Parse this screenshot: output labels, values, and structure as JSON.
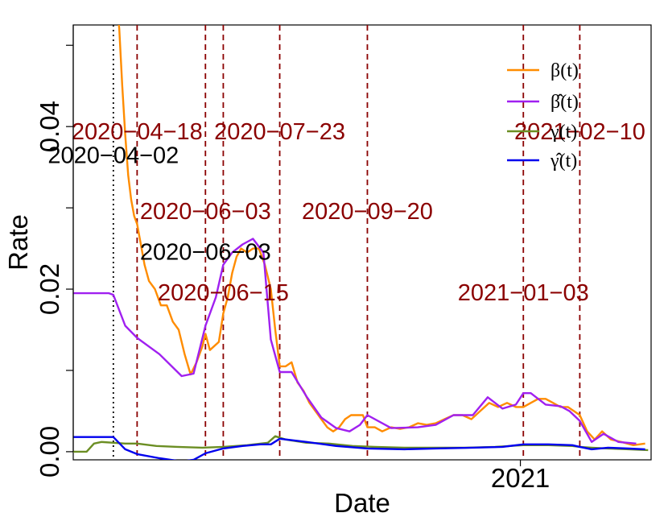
{
  "chart_data": {
    "type": "line",
    "title": "",
    "xlabel": "Date",
    "ylabel": "Rate",
    "x_range": [
      "2020-03-06",
      "2021-03-30"
    ],
    "ylim": [
      -0.001,
      0.0525
    ],
    "y_ticks": [
      0.0,
      0.02,
      0.04
    ],
    "y_tick_labels": [
      "0.00",
      "0.02",
      "0.04"
    ],
    "x_ticks": [
      {
        "date": "2021-01-01",
        "label": "2021"
      }
    ],
    "grid": false,
    "legend_position": "top-right",
    "series": [
      {
        "name": "β(t)",
        "color": "#FF8C00",
        "x": [
          "2020-04-02",
          "2020-04-06",
          "2020-04-08",
          "2020-04-10",
          "2020-04-12",
          "2020-04-14",
          "2020-04-16",
          "2020-04-18",
          "2020-04-20",
          "2020-04-23",
          "2020-04-26",
          "2020-04-30",
          "2020-05-04",
          "2020-05-08",
          "2020-05-12",
          "2020-05-16",
          "2020-05-20",
          "2020-05-24",
          "2020-05-28",
          "2020-06-01",
          "2020-06-03",
          "2020-06-06",
          "2020-06-09",
          "2020-06-12",
          "2020-06-15",
          "2020-06-18",
          "2020-06-21",
          "2020-06-24",
          "2020-06-27",
          "2020-07-01",
          "2020-07-05",
          "2020-07-09",
          "2020-07-13",
          "2020-07-17",
          "2020-07-20",
          "2020-07-23",
          "2020-07-27",
          "2020-07-31",
          "2020-08-04",
          "2020-08-08",
          "2020-08-12",
          "2020-08-16",
          "2020-08-20",
          "2020-08-24",
          "2020-08-28",
          "2020-09-01",
          "2020-09-05",
          "2020-09-09",
          "2020-09-13",
          "2020-09-17",
          "2020-09-20",
          "2020-09-25",
          "2020-09-30",
          "2020-10-06",
          "2020-10-12",
          "2020-10-18",
          "2020-10-24",
          "2020-10-30",
          "2020-11-05",
          "2020-11-11",
          "2020-11-17",
          "2020-11-23",
          "2020-11-29",
          "2020-12-05",
          "2020-12-11",
          "2020-12-17",
          "2020-12-23",
          "2020-12-29",
          "2021-01-03",
          "2021-01-08",
          "2021-01-13",
          "2021-01-18",
          "2021-01-23",
          "2021-01-28",
          "2021-02-02",
          "2021-02-06",
          "2021-02-10",
          "2021-02-15",
          "2021-02-20",
          "2021-02-25",
          "2021-03-03",
          "2021-03-10",
          "2021-03-18",
          "2021-03-26"
        ],
        "y": [
          0.06,
          0.052,
          0.045,
          0.039,
          0.034,
          0.031,
          0.029,
          0.028,
          0.026,
          0.023,
          0.021,
          0.02,
          0.018,
          0.018,
          0.016,
          0.015,
          0.012,
          0.0095,
          0.011,
          0.013,
          0.0145,
          0.0125,
          0.013,
          0.0135,
          0.017,
          0.019,
          0.022,
          0.024,
          0.025,
          0.0245,
          0.025,
          0.025,
          0.023,
          0.02,
          0.015,
          0.0105,
          0.0105,
          0.011,
          0.0085,
          0.0075,
          0.006,
          0.005,
          0.004,
          0.003,
          0.0025,
          0.003,
          0.004,
          0.0045,
          0.0045,
          0.0045,
          0.003,
          0.003,
          0.0025,
          0.003,
          0.0028,
          0.003,
          0.0035,
          0.0033,
          0.0035,
          0.004,
          0.0045,
          0.0045,
          0.004,
          0.005,
          0.006,
          0.0055,
          0.006,
          0.0055,
          0.0055,
          0.006,
          0.0065,
          0.0065,
          0.006,
          0.0055,
          0.0055,
          0.005,
          0.0045,
          0.0025,
          0.0015,
          0.0025,
          0.0015,
          0.0012,
          0.0008,
          0.001
        ]
      },
      {
        "name": "β̂(t)",
        "color": "#A020F0",
        "x": [
          "2020-03-06",
          "2020-03-30",
          "2020-04-02",
          "2020-04-10",
          "2020-04-18",
          "2020-05-03",
          "2020-05-18",
          "2020-05-26",
          "2020-06-03",
          "2020-06-10",
          "2020-06-15",
          "2020-06-21",
          "2020-06-28",
          "2020-07-05",
          "2020-07-12",
          "2020-07-17",
          "2020-07-23",
          "2020-07-31",
          "2020-08-10",
          "2020-08-20",
          "2020-08-30",
          "2020-09-08",
          "2020-09-15",
          "2020-09-20",
          "2020-10-06",
          "2020-10-24",
          "2020-11-05",
          "2020-11-17",
          "2020-11-30",
          "2020-12-10",
          "2020-12-20",
          "2020-12-29",
          "2021-01-03",
          "2021-01-08",
          "2021-01-18",
          "2021-01-28",
          "2021-02-03",
          "2021-02-10",
          "2021-02-18",
          "2021-02-26",
          "2021-03-08",
          "2021-03-20"
        ],
        "y": [
          0.0195,
          0.0195,
          0.0193,
          0.0155,
          0.014,
          0.012,
          0.0093,
          0.0096,
          0.0155,
          0.019,
          0.023,
          0.0245,
          0.0255,
          0.0262,
          0.0245,
          0.0138,
          0.0098,
          0.0098,
          0.0068,
          0.0042,
          0.0029,
          0.0025,
          0.0033,
          0.0045,
          0.0029,
          0.003,
          0.0033,
          0.0045,
          0.0045,
          0.0067,
          0.0053,
          0.0058,
          0.0072,
          0.0072,
          0.0058,
          0.0056,
          0.005,
          0.0038,
          0.0012,
          0.0022,
          0.0012,
          0.001
        ]
      },
      {
        "name": "γ(t)",
        "color": "#6B8E23",
        "x": [
          "2020-03-06",
          "2020-03-15",
          "2020-03-20",
          "2020-03-25",
          "2020-04-02",
          "2020-04-10",
          "2020-04-18",
          "2020-05-01",
          "2020-05-15",
          "2020-06-01",
          "2020-06-15",
          "2020-07-01",
          "2020-07-15",
          "2020-07-20",
          "2020-07-27",
          "2020-08-10",
          "2020-08-25",
          "2020-09-10",
          "2020-09-25",
          "2020-10-15",
          "2020-11-05",
          "2020-11-25",
          "2020-12-15",
          "2021-01-03",
          "2021-01-20",
          "2021-02-05",
          "2021-02-10",
          "2021-02-18",
          "2021-03-01",
          "2021-03-15",
          "2021-03-28"
        ],
        "y": [
          0.0,
          0.0,
          0.001,
          0.0012,
          0.0011,
          0.001,
          0.001,
          0.0007,
          0.0006,
          0.0005,
          0.0006,
          0.0008,
          0.0011,
          0.0019,
          0.0015,
          0.0011,
          0.001,
          0.0007,
          0.0006,
          0.0005,
          0.0005,
          0.0005,
          0.0006,
          0.0008,
          0.0008,
          0.0007,
          0.0006,
          0.0005,
          0.0004,
          0.0003,
          0.0002
        ]
      },
      {
        "name": "γ̂(t)",
        "color": "#0000EE",
        "x": [
          "2020-03-06",
          "2020-03-30",
          "2020-04-02",
          "2020-04-10",
          "2020-04-18",
          "2020-05-03",
          "2020-05-18",
          "2020-05-26",
          "2020-06-03",
          "2020-06-15",
          "2020-06-28",
          "2020-07-10",
          "2020-07-17",
          "2020-07-23",
          "2020-08-10",
          "2020-08-30",
          "2020-09-20",
          "2020-10-15",
          "2020-11-05",
          "2020-11-30",
          "2020-12-20",
          "2021-01-03",
          "2021-01-20",
          "2021-02-05",
          "2021-02-10",
          "2021-02-18",
          "2021-03-01",
          "2021-03-15",
          "2021-03-26"
        ],
        "y": [
          0.0018,
          0.0018,
          0.0018,
          0.0003,
          -0.0003,
          -0.0008,
          -0.0012,
          -0.001,
          -0.0002,
          0.0004,
          0.0007,
          0.0009,
          0.0009,
          0.0016,
          0.0012,
          0.0007,
          0.0004,
          0.0003,
          0.0004,
          0.0005,
          0.0006,
          0.0009,
          0.0009,
          0.0008,
          0.0006,
          0.0003,
          0.0005,
          0.0004,
          0.0003
        ]
      }
    ],
    "vlines": [
      {
        "date": "2020-04-02",
        "color": "#000000",
        "style": "dotted"
      },
      {
        "date": "2020-04-18",
        "color": "#8B0000",
        "style": "dashed"
      },
      {
        "date": "2020-06-03",
        "color": "#8B0000",
        "style": "dashed"
      },
      {
        "date": "2020-06-15",
        "color": "#8B0000",
        "style": "dashed"
      },
      {
        "date": "2020-07-23",
        "color": "#8B0000",
        "style": "dashed"
      },
      {
        "date": "2020-09-20",
        "color": "#8B0000",
        "style": "dashed"
      },
      {
        "date": "2021-01-03",
        "color": "#8B0000",
        "style": "dashed"
      },
      {
        "date": "2021-02-10",
        "color": "#8B0000",
        "style": "dashed"
      }
    ],
    "annotations": [
      {
        "text": "2020−04−18",
        "date": "2020-04-18",
        "y": 0.0394,
        "color": "#8B0000"
      },
      {
        "text": "2020−07−23",
        "date": "2020-07-23",
        "y": 0.0394,
        "color": "#8B0000"
      },
      {
        "text": "2021−02−10",
        "date": "2021-02-10",
        "y": 0.0394,
        "color": "#8B0000"
      },
      {
        "text": "2020−04−02",
        "date": "2020-04-02",
        "y": 0.0365,
        "color": "#000000"
      },
      {
        "text": "2020−06−03",
        "date": "2020-06-03",
        "y": 0.0296,
        "color": "#8B0000"
      },
      {
        "text": "2020−09−20",
        "date": "2020-09-20",
        "y": 0.0296,
        "color": "#8B0000"
      },
      {
        "text": "2020−06−03",
        "date": "2020-06-03",
        "y": 0.0246,
        "color": "#000000"
      },
      {
        "text": "2020−06−15",
        "date": "2020-06-15",
        "y": 0.0196,
        "color": "#8B0000"
      },
      {
        "text": "2021−01−03",
        "date": "2021-01-03",
        "y": 0.0196,
        "color": "#8B0000"
      }
    ]
  }
}
